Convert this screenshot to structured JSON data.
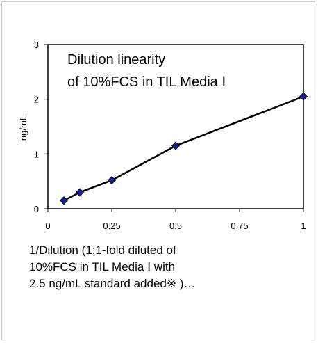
{
  "chart_data": {
    "type": "line",
    "title_lines": [
      "Dilution linearity",
      "of  10%FCS in TIL Media Ⅰ"
    ],
    "ylabel": "ng/mL",
    "xlabel_lines": [
      "1/Dilution (1;1-fold diluted of",
      "10%FCS  in TIL Media Ⅰ with",
      "2.5 ng/mL standard added※ )…"
    ],
    "xlim": [
      0,
      1
    ],
    "ylim": [
      0,
      3
    ],
    "x_ticks": [
      0,
      0.25,
      0.5,
      0.75,
      1
    ],
    "x_tick_labels": [
      "0",
      "0.25",
      "0.5",
      "0.75",
      "1"
    ],
    "y_ticks": [
      0,
      1,
      2,
      3
    ],
    "y_tick_labels": [
      "0",
      "1",
      "2",
      "3"
    ],
    "grid": false,
    "series": [
      {
        "x": [
          0.0625,
          0.125,
          0.25,
          0.5,
          1
        ],
        "y": [
          0.15,
          0.3,
          0.52,
          1.15,
          2.05
        ],
        "color": "#1a1a8c"
      }
    ]
  }
}
